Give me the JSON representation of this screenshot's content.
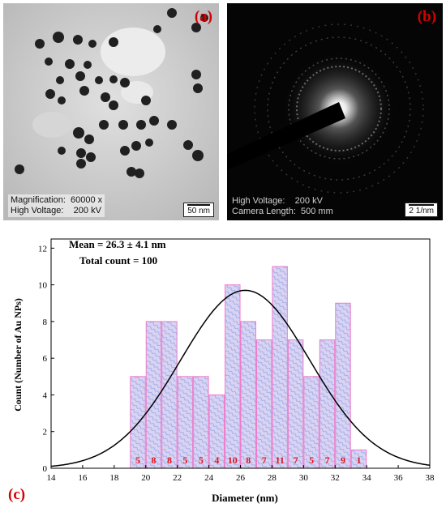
{
  "panel_a": {
    "letter": "(a)",
    "magnification_label": "Magnification:",
    "magnification_value": "60000 x",
    "voltage_label": "High Voltage:",
    "voltage_value": "200 kV",
    "scale": "50 nm"
  },
  "panel_b": {
    "letter": "(b)",
    "voltage_label": "High Voltage:",
    "voltage_value": "200 kV",
    "camera_label": "Camera Length:",
    "camera_value": "500 mm",
    "scale": "2 1/nm"
  },
  "panel_c": {
    "letter": "(c)"
  },
  "colors": {
    "bar_fill": "#d9d2f2",
    "bar_stroke": "#f07acb",
    "bar_label": "#e0151c",
    "curve": "#000000",
    "letter": "#d40000"
  },
  "chart_data": {
    "type": "bar",
    "x": [
      19.5,
      20.5,
      21.5,
      22.5,
      23.5,
      24.5,
      25.5,
      26.5,
      27.5,
      28.5,
      29.5,
      30.5,
      31.5,
      32.5,
      33.5
    ],
    "values": [
      5,
      8,
      8,
      5,
      5,
      4,
      10,
      8,
      7,
      11,
      7,
      5,
      7,
      9,
      1
    ],
    "data_labels": [
      "5",
      "8",
      "8",
      "5",
      "5",
      "4",
      "10",
      "8",
      "7",
      "11",
      "7",
      "5",
      "7",
      "9",
      "1"
    ],
    "bin_width": 1,
    "xlabel": "Diameter (nm)",
    "ylabel": "Count (Number of Au NPs)",
    "xlim": [
      14,
      38
    ],
    "ylim": [
      0,
      12.5
    ],
    "xticks": [
      "14",
      "16",
      "18",
      "20",
      "22",
      "24",
      "26",
      "28",
      "30",
      "32",
      "34",
      "36",
      "38"
    ],
    "yticks": [
      "0",
      "2",
      "4",
      "6",
      "8",
      "10",
      "12"
    ],
    "annotations": [
      "Mean = 26.3 ± 4.1 nm",
      "Total count = 100"
    ],
    "fit": {
      "type": "gaussian",
      "mean": 26.3,
      "sd": 4.1,
      "peak": 9.7
    },
    "grid": false
  }
}
